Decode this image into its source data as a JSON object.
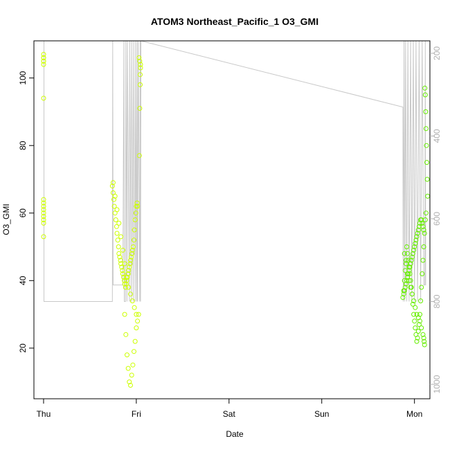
{
  "chart_data": {
    "type": "scatter",
    "title": "ATOM3 Northeast_Pacific_1 O3_GMI",
    "xlabel": "Date",
    "ylabel": "O3_GMI",
    "x_ticks": [
      "Thu",
      "Fri",
      "Sat",
      "Sun",
      "Mon"
    ],
    "xlim": [
      "Thu 00:00",
      "Mon 04:00"
    ],
    "ylim": [
      5,
      111
    ],
    "y_ticks": [
      20,
      40,
      60,
      80,
      100
    ],
    "y2_ticks": [
      200,
      400,
      600,
      800,
      1000
    ],
    "y2lim": [
      1035,
      170
    ],
    "y2_reversed": true,
    "colors": {
      "points_early": "#ccff00",
      "points_late": "#66ee00",
      "pressure_line": "#c8c8c8",
      "axes": "#000000",
      "right_axis": "#b0b0b0"
    },
    "series": [
      {
        "values_x_hours": [
          0.0,
          0.0,
          0.0,
          0.0,
          0.0,
          0.0,
          0.0,
          0.0,
          0.0,
          0.0,
          0.0,
          0.0,
          0.0,
          0.0,
          0.0,
          0.0,
          17.8,
          18.0,
          18.2,
          18.3,
          18.5,
          18.7,
          18.9,
          19.0,
          19.2,
          19.4,
          19.5,
          19.7,
          19.9,
          20.0,
          20.2,
          20.4,
          20.5,
          20.7,
          20.9,
          21.0,
          21.2,
          21.4,
          21.5,
          21.7,
          21.9,
          22.0,
          22.2,
          22.4,
          22.5,
          22.7,
          22.9,
          23.0,
          23.2,
          23.4,
          23.5,
          23.7,
          23.9,
          24.0,
          24.2,
          24.3,
          18.0,
          18.5,
          19.0,
          19.5,
          20.0,
          20.5,
          21.0,
          21.5,
          22.0,
          22.5,
          23.0,
          23.5,
          24.0,
          21.0,
          21.3,
          21.6,
          21.9,
          22.2,
          22.5,
          22.8,
          23.1,
          23.4,
          23.7,
          24.0,
          24.3,
          24.6,
          24.8,
          24.9,
          25.0,
          25.0,
          25.1,
          25.1,
          24.9,
          24.7
        ],
        "values_y": [
          105,
          106,
          107,
          106,
          105,
          104,
          94,
          64,
          63,
          62,
          61,
          60,
          59,
          58,
          57,
          53,
          68,
          66,
          64,
          62,
          60,
          58,
          56,
          54,
          52,
          50,
          48,
          47,
          46,
          45,
          44,
          43,
          42,
          41,
          40,
          39,
          38,
          39,
          40,
          41,
          42,
          43,
          44,
          45,
          46,
          47,
          48,
          49,
          50,
          52,
          55,
          58,
          60,
          62,
          63,
          62,
          69,
          65,
          61,
          57,
          53,
          49,
          45,
          41,
          38,
          36,
          34,
          32,
          30,
          30,
          24,
          18,
          14,
          10,
          9,
          12,
          15,
          19,
          22,
          26,
          28,
          30,
          77,
          91,
          98,
          101,
          103,
          104,
          105,
          106
        ],
        "color": "#ccff00"
      },
      {
        "values_x_hours": [
          93.0,
          93.2,
          93.4,
          93.6,
          93.8,
          94.0,
          94.2,
          94.4,
          94.6,
          94.8,
          95.0,
          95.2,
          95.4,
          95.6,
          95.8,
          96.0,
          96.2,
          96.4,
          96.6,
          96.8,
          97.0,
          97.2,
          97.4,
          97.6,
          97.8,
          98.0,
          98.2,
          98.4,
          93.4,
          93.8,
          94.2,
          94.6,
          95.0,
          95.4,
          95.8,
          96.2,
          96.6,
          97.0,
          97.4,
          97.8,
          98.2,
          98.4,
          98.5,
          98.6,
          98.7,
          98.8,
          98.9,
          99.0,
          99.1,
          99.2,
          99.3,
          99.4,
          99.0,
          98.8,
          98.6,
          98.4,
          98.2,
          98.0,
          97.8,
          97.6,
          97.4,
          97.2,
          97.0,
          96.8,
          96.6,
          96.4,
          96.2,
          96.0,
          95.8,
          95.6,
          95.4,
          95.2,
          95.0,
          94.8,
          94.6,
          94.4,
          94.2,
          94.0,
          93.8,
          93.6,
          93.4,
          93.2
        ],
        "values_y": [
          35,
          36,
          37,
          38,
          39,
          40,
          41,
          42,
          43,
          44,
          45,
          46,
          47,
          48,
          49,
          50,
          51,
          52,
          53,
          54,
          55,
          56,
          57,
          58,
          58,
          57,
          56,
          55,
          48,
          45,
          42,
          40,
          38,
          36,
          34,
          32,
          30,
          29,
          28,
          26,
          24,
          23,
          22,
          21,
          97,
          95,
          90,
          85,
          80,
          75,
          70,
          65,
          60,
          58,
          54,
          50,
          46,
          42,
          38,
          34,
          30,
          27,
          25,
          23,
          22,
          24,
          26,
          28,
          30,
          33,
          36,
          38,
          40,
          42,
          44,
          46,
          48,
          50,
          46,
          43,
          40,
          37
        ],
        "color": "#66ee00"
      }
    ],
    "pressure_trace": {
      "x_hours": [
        0.0,
        0.1,
        0.1,
        0.1,
        0.1,
        0.2,
        17.8,
        17.9,
        17.9,
        18.0,
        18.1,
        18.2,
        20.5,
        20.8,
        20.9,
        21.2,
        21.3,
        21.6,
        21.7,
        22.2,
        22.3,
        22.7,
        22.8,
        23.2,
        23.3,
        23.7,
        23.8,
        24.1,
        24.2,
        24.3,
        24.5,
        24.9,
        25.0,
        25.1,
        25.2,
        93.0,
        93.1,
        93.3,
        93.5,
        93.7,
        94.0,
        94.3,
        94.6,
        95.0,
        95.3,
        95.7,
        96.0,
        96.4,
        96.8,
        97.2,
        97.6,
        98.0,
        98.4,
        98.7,
        98.8,
        98.9,
        99.0
      ],
      "y_pressure": [
        800,
        800,
        170,
        170,
        800,
        800,
        800,
        170,
        170,
        760,
        760,
        760,
        760,
        170,
        800,
        800,
        170,
        800,
        170,
        800,
        170,
        800,
        170,
        800,
        170,
        800,
        170,
        800,
        170,
        800,
        170,
        800,
        170,
        800,
        170,
        330,
        800,
        170,
        800,
        170,
        800,
        170,
        800,
        170,
        800,
        170,
        800,
        170,
        800,
        170,
        800,
        170,
        760,
        760,
        170,
        760,
        760
      ]
    }
  }
}
